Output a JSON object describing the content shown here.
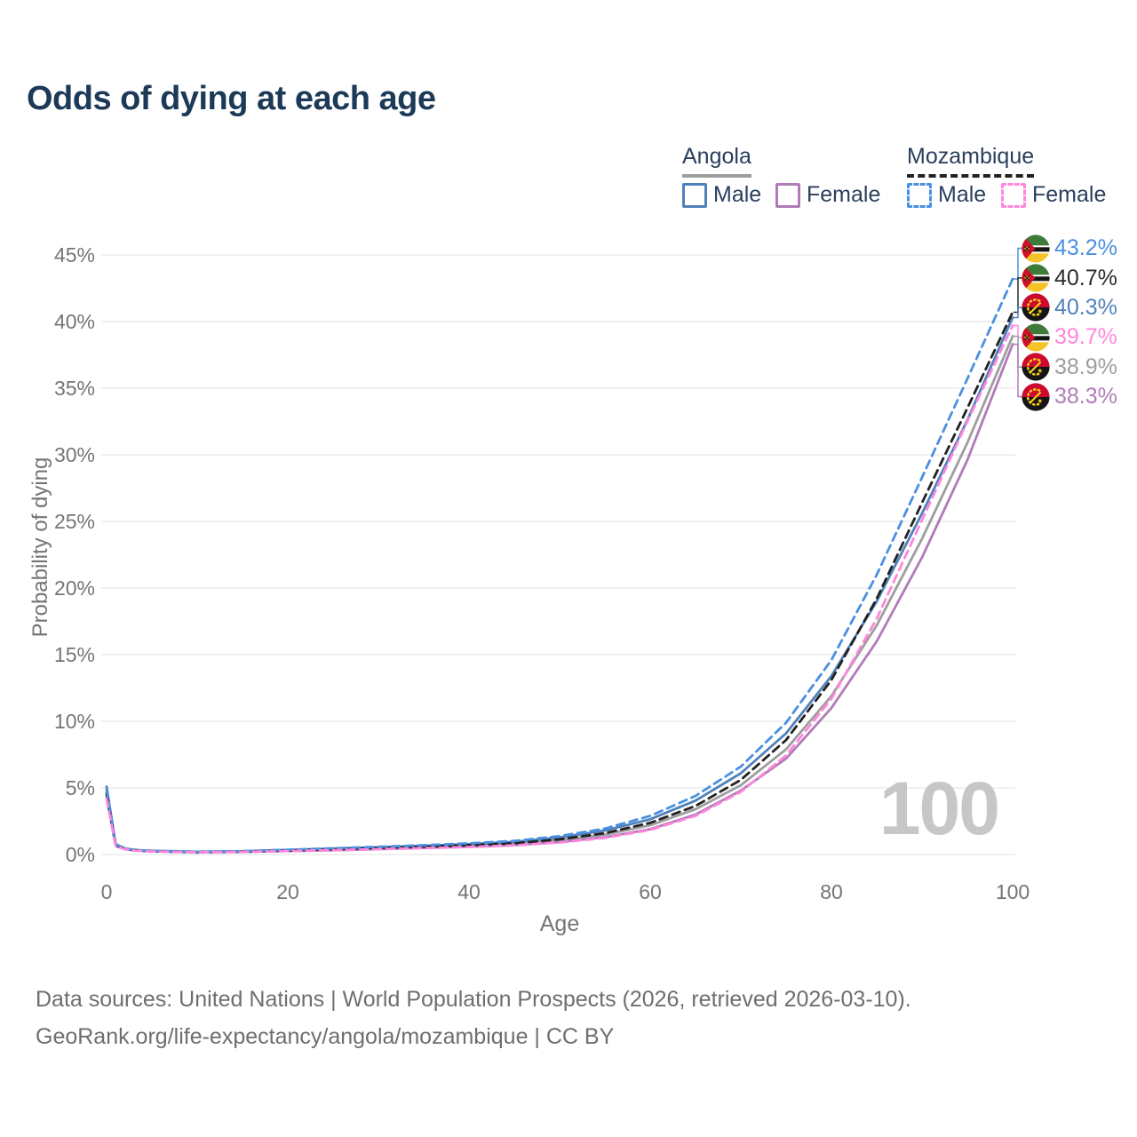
{
  "title": "Odds of dying at each age",
  "legend": {
    "groups": [
      {
        "label": "Angola",
        "line_style": "solid",
        "line_color": "#9e9e9e",
        "items": [
          {
            "label": "Male",
            "color": "#5081ba",
            "style": "solid"
          },
          {
            "label": "Female",
            "color": "#b07cb8",
            "style": "solid"
          }
        ]
      },
      {
        "label": "Mozambique",
        "line_style": "dashed",
        "line_color": "#222222",
        "items": [
          {
            "label": "Male",
            "color": "#4a90e2",
            "style": "dashed"
          },
          {
            "label": "Female",
            "color": "#ff85dd",
            "style": "dashed"
          }
        ]
      }
    ]
  },
  "chart_data": {
    "type": "line",
    "title": "Odds of dying at each age",
    "xlabel": "Age",
    "ylabel": "Probability of dying",
    "xlim": [
      0,
      100
    ],
    "ylim": [
      0,
      45
    ],
    "xticks": [
      0,
      20,
      40,
      60,
      80,
      100
    ],
    "yticks": [
      0,
      5,
      10,
      15,
      20,
      25,
      30,
      35,
      40,
      45
    ],
    "ytick_suffix": "%",
    "grid": "horizontal",
    "x": [
      0,
      1,
      2,
      3,
      4,
      5,
      10,
      15,
      20,
      25,
      30,
      35,
      40,
      45,
      50,
      55,
      60,
      65,
      70,
      75,
      80,
      85,
      90,
      95,
      100
    ],
    "series": [
      {
        "name": "Angola Both sexes",
        "country": "angola",
        "color": "#9e9e9e",
        "dash": false,
        "values": [
          4.7,
          0.72,
          0.44,
          0.34,
          0.29,
          0.26,
          0.19,
          0.22,
          0.3,
          0.38,
          0.46,
          0.56,
          0.67,
          0.82,
          1.08,
          1.5,
          2.2,
          3.4,
          5.2,
          7.9,
          11.9,
          17.2,
          23.7,
          30.9,
          38.9
        ]
      },
      {
        "name": "Angola Male",
        "country": "angola",
        "color": "#5081ba",
        "dash": false,
        "values": [
          5.1,
          0.78,
          0.47,
          0.36,
          0.31,
          0.28,
          0.21,
          0.25,
          0.34,
          0.44,
          0.54,
          0.65,
          0.78,
          0.95,
          1.28,
          1.8,
          2.65,
          4.05,
          6.1,
          9.1,
          13.4,
          19.0,
          25.6,
          32.6,
          40.3
        ]
      },
      {
        "name": "Angola Female",
        "country": "angola",
        "color": "#b07cb8",
        "dash": false,
        "values": [
          4.3,
          0.66,
          0.41,
          0.31,
          0.27,
          0.24,
          0.17,
          0.2,
          0.26,
          0.32,
          0.4,
          0.49,
          0.58,
          0.7,
          0.93,
          1.3,
          1.9,
          3.0,
          4.8,
          7.2,
          11.0,
          16.0,
          22.3,
          29.6,
          38.3
        ]
      },
      {
        "name": "Mozambique Both sexes",
        "country": "mozambique",
        "color": "#222222",
        "dash": true,
        "values": [
          4.55,
          0.7,
          0.42,
          0.33,
          0.28,
          0.25,
          0.18,
          0.22,
          0.31,
          0.4,
          0.49,
          0.59,
          0.7,
          0.85,
          1.14,
          1.6,
          2.38,
          3.65,
          5.6,
          8.6,
          13.1,
          19.2,
          26.4,
          33.5,
          40.7
        ]
      },
      {
        "name": "Mozambique Male",
        "country": "mozambique",
        "color": "#4a90e2",
        "dash": true,
        "values": [
          4.9,
          0.75,
          0.45,
          0.35,
          0.3,
          0.27,
          0.2,
          0.25,
          0.36,
          0.47,
          0.58,
          0.7,
          0.84,
          1.02,
          1.38,
          1.95,
          2.9,
          4.4,
          6.6,
          9.9,
          14.6,
          21.0,
          28.3,
          35.7,
          43.2
        ]
      },
      {
        "name": "Mozambique Female",
        "country": "mozambique",
        "color": "#ff85dd",
        "dash": true,
        "values": [
          4.2,
          0.65,
          0.4,
          0.3,
          0.26,
          0.23,
          0.17,
          0.2,
          0.26,
          0.33,
          0.4,
          0.48,
          0.57,
          0.69,
          0.9,
          1.25,
          1.85,
          2.9,
          4.7,
          7.45,
          11.7,
          17.7,
          25.1,
          32.5,
          39.7
        ]
      }
    ]
  },
  "end_labels": [
    {
      "flag": "mozambique-flag",
      "value": "43.2%",
      "color": "#4a90e2"
    },
    {
      "flag": "mozambique-flag",
      "value": "40.7%",
      "color": "#2b2b2b"
    },
    {
      "flag": "angola-flag",
      "value": "40.3%",
      "color": "#5081ba"
    },
    {
      "flag": "mozambique-flag",
      "value": "39.7%",
      "color": "#ff85dd"
    },
    {
      "flag": "angola-flag",
      "value": "38.9%",
      "color": "#9e9e9e"
    },
    {
      "flag": "angola-flag",
      "value": "38.3%",
      "color": "#b07cb8"
    }
  ],
  "hover_age_indicator": "100",
  "footer": {
    "line1": "Data sources: United Nations | World Population Prospects (2026, retrieved 2026-03-10).",
    "line2": "GeoRank.org/life-expectancy/angola/mozambique | CC BY"
  }
}
